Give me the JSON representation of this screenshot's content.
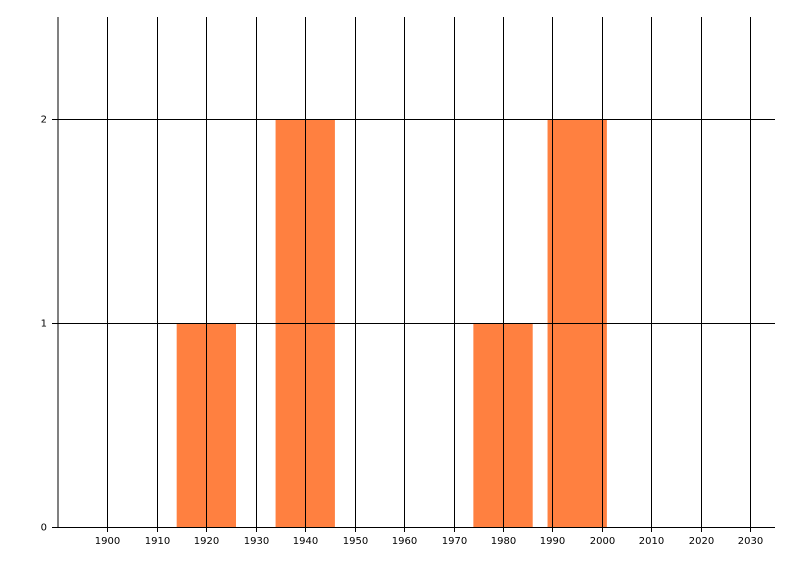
{
  "chart_data": {
    "type": "bar",
    "x": [
      1920,
      1940,
      1980,
      1995
    ],
    "values": [
      1,
      2,
      1,
      2
    ],
    "color": "#ff8040",
    "xlim": [
      1890,
      2035
    ],
    "xticks": [
      1900,
      1910,
      1920,
      1930,
      1940,
      1950,
      1960,
      1970,
      1980,
      1990,
      2000,
      2010,
      2020,
      2030
    ],
    "ylim": [
      0,
      2.5
    ],
    "yticks": [
      0,
      1,
      2
    ],
    "grid": true
  }
}
